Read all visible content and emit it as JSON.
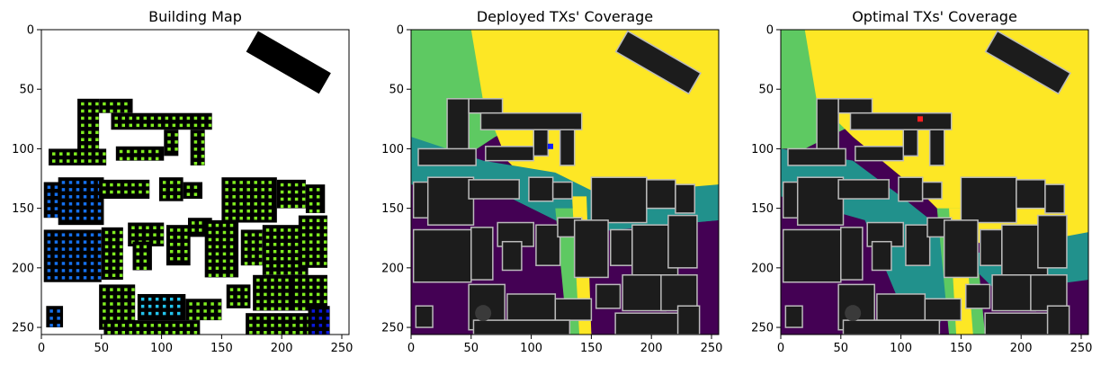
{
  "chart_data": [
    {
      "type": "heatmap",
      "title": "Building Map",
      "xlim": [
        0,
        256
      ],
      "ylim": [
        256,
        0
      ],
      "xticks": [
        0,
        50,
        100,
        150,
        200,
        250
      ],
      "yticks": [
        0,
        50,
        100,
        150,
        200,
        250
      ],
      "tick_labels": {
        "x": [
          "0",
          "50",
          "100",
          "150",
          "200",
          "250"
        ],
        "y": [
          "0",
          "50",
          "100",
          "150",
          "200",
          "250"
        ]
      },
      "colors": {
        "background": "#ffffff",
        "building": "#000000",
        "window_green": "#80ee20",
        "window_cyan": "#22c4ee",
        "window_blue": "#1470ee",
        "window_darkblue": "#0a18e0"
      }
    },
    {
      "type": "heatmap",
      "title": "Deployed TXs' Coverage",
      "xlim": [
        0,
        256
      ],
      "ylim": [
        256,
        0
      ],
      "xticks": [
        0,
        50,
        100,
        150,
        200,
        250
      ],
      "yticks": [
        0,
        50,
        100,
        150,
        200,
        250
      ],
      "tick_labels": {
        "x": [
          "0",
          "50",
          "100",
          "150",
          "200",
          "250"
        ],
        "y": [
          "0",
          "50",
          "100",
          "150",
          "200",
          "250"
        ]
      },
      "tx_marker": {
        "x": 116,
        "y": 98,
        "color": "#1020ff"
      },
      "colors": {
        "high": "#fde725",
        "mid_high": "#5ec962",
        "mid": "#21918c",
        "low": "#440154",
        "building": "#1c1c1c",
        "outline": "#bbbbbb"
      }
    },
    {
      "type": "heatmap",
      "title": "Optimal TXs' Coverage",
      "xlim": [
        0,
        256
      ],
      "ylim": [
        256,
        0
      ],
      "xticks": [
        0,
        50,
        100,
        150,
        200,
        250
      ],
      "yticks": [
        0,
        50,
        100,
        150,
        200,
        250
      ],
      "tick_labels": {
        "x": [
          "0",
          "50",
          "100",
          "150",
          "200",
          "250"
        ],
        "y": [
          "0",
          "50",
          "100",
          "150",
          "200",
          "250"
        ]
      },
      "tx_marker": {
        "x": 116,
        "y": 75,
        "color": "#ff2020"
      },
      "colors": {
        "high": "#fde725",
        "mid_high": "#5ec962",
        "mid": "#21918c",
        "low": "#440154",
        "building": "#1c1c1c",
        "outline": "#bbbbbb"
      }
    }
  ]
}
